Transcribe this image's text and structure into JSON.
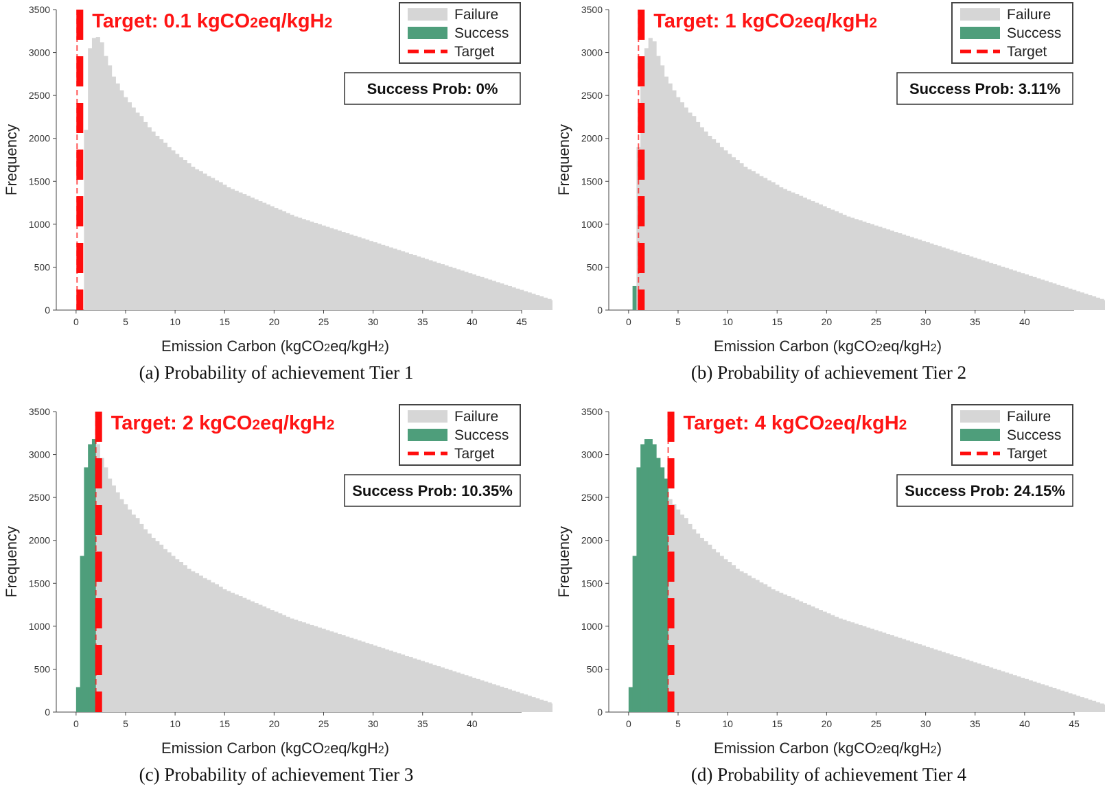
{
  "colors": {
    "failure": "#d6d6d6",
    "success": "#4e9e7b",
    "target": "#ff0d0d"
  },
  "chart_data": [
    {
      "type": "bar",
      "caption": "(a) Probability of achievement Tier 1",
      "xlabel": "Emission Carbon (kgCO2eq/kgH2)",
      "ylabel": "Frequency",
      "xlim": [
        -2,
        45
      ],
      "ylim": [
        0,
        3500
      ],
      "xticks": [
        0,
        5,
        10,
        15,
        20,
        25,
        30,
        35,
        40,
        45
      ],
      "yticks": [
        0,
        500,
        1000,
        1500,
        2000,
        2500,
        3000,
        3500
      ],
      "target": 0.1,
      "target_label": "Target: 0.1 kgCO2eq/kgH2",
      "success_prob": "Success Prob: 0%",
      "legend": [
        "Failure",
        "Success",
        "Target"
      ],
      "bins": {
        "start": 0,
        "width": 0.4,
        "values": [
          0,
          0,
          2100,
          3050,
          3170,
          3180,
          3120,
          2960,
          2850,
          2720,
          2640,
          2560,
          2480,
          2420,
          2360,
          2300,
          2260,
          2190,
          2130,
          2080,
          2030,
          1990,
          1950,
          1900,
          1860,
          1820,
          1780,
          1750,
          1710,
          1670,
          1640,
          1620,
          1590,
          1560,
          1540,
          1510,
          1490,
          1460,
          1430,
          1410,
          1390,
          1370,
          1350,
          1330,
          1310,
          1290,
          1270,
          1250,
          1230,
          1210,
          1190,
          1170,
          1150,
          1130,
          1110,
          1090,
          1075,
          1060,
          1045,
          1030,
          1015,
          1000,
          985,
          970,
          955,
          940,
          925,
          910,
          895,
          880,
          865,
          850,
          835,
          820,
          805,
          790,
          775,
          760,
          745,
          730,
          715,
          700,
          685,
          670,
          655,
          640,
          625,
          610,
          595,
          580,
          565,
          550,
          535,
          520,
          505,
          490,
          475,
          460,
          445,
          430,
          415,
          400,
          385,
          370,
          355,
          340,
          325,
          310,
          295,
          280,
          265,
          250,
          235,
          220,
          205,
          190,
          175,
          160,
          145,
          130,
          115,
          100,
          88,
          76,
          65,
          55,
          46,
          38,
          31,
          25,
          20,
          15,
          11,
          8,
          6,
          4,
          3,
          2,
          1,
          1,
          0,
          0,
          0,
          0,
          0,
          0,
          0,
          0,
          0,
          0,
          0,
          0,
          0,
          0,
          0,
          0,
          0,
          0,
          0,
          0,
          0,
          0,
          0,
          0,
          0,
          0
        ]
      }
    },
    {
      "type": "bar",
      "caption": "(b) Probability of achievement Tier 2",
      "xlabel": "Emission Carbon (kgCO2eq/kgH2)",
      "ylabel": "Frequency",
      "xlim": [
        -2,
        45
      ],
      "ylim": [
        0,
        3500
      ],
      "xticks": [
        0,
        5,
        10,
        15,
        20,
        25,
        30,
        35,
        40
      ],
      "yticks": [
        0,
        500,
        1000,
        1500,
        2000,
        2500,
        3000,
        3500
      ],
      "target": 1,
      "target_label": "Target: 1 kgCO2eq/kgH2",
      "success_prob": "Success Prob: 3.11%",
      "legend": [
        "Failure",
        "Success",
        "Target"
      ],
      "bins": {
        "start": 0,
        "width": 0.4,
        "values": [
          0,
          280,
          1900,
          2600,
          3050,
          3170,
          3130,
          2960,
          2850,
          2720,
          2640,
          2560,
          2480,
          2420,
          2360,
          2300,
          2260,
          2190,
          2130,
          2080,
          2030,
          1990,
          1950,
          1900,
          1860,
          1820,
          1780,
          1750,
          1710,
          1670,
          1640,
          1620,
          1590,
          1560,
          1540,
          1510,
          1490,
          1460,
          1430,
          1410,
          1390,
          1370,
          1350,
          1330,
          1310,
          1290,
          1270,
          1250,
          1230,
          1210,
          1190,
          1170,
          1150,
          1130,
          1110,
          1090,
          1075,
          1060,
          1045,
          1030,
          1015,
          1000,
          985,
          970,
          955,
          940,
          925,
          910,
          895,
          880,
          865,
          850,
          835,
          820,
          805,
          790,
          775,
          760,
          745,
          730,
          715,
          700,
          685,
          670,
          655,
          640,
          625,
          610,
          595,
          580,
          565,
          550,
          535,
          520,
          505,
          490,
          475,
          460,
          445,
          430,
          415,
          400,
          385,
          370,
          355,
          340,
          325,
          310,
          295,
          280,
          265,
          250,
          235,
          220,
          205,
          190,
          175,
          160,
          145,
          130,
          115,
          100,
          88,
          76,
          65,
          55,
          46,
          38,
          31,
          25,
          20,
          15,
          11,
          8,
          6,
          4,
          3,
          2,
          1,
          1,
          0,
          0,
          0,
          0,
          0,
          0,
          0,
          0,
          0,
          0,
          0,
          0,
          0,
          0,
          0,
          0,
          0,
          0,
          0,
          0,
          0,
          0,
          0,
          0,
          0,
          0
        ]
      }
    },
    {
      "type": "bar",
      "caption": "(c) Probability of achievement Tier 3",
      "xlabel": "Emission Carbon (kgCO2eq/kgH2)",
      "ylabel": "Frequency",
      "xlim": [
        -2,
        45
      ],
      "ylim": [
        0,
        3500
      ],
      "xticks": [
        0,
        5,
        10,
        15,
        20,
        25,
        30,
        35,
        40
      ],
      "yticks": [
        0,
        500,
        1000,
        1500,
        2000,
        2500,
        3000,
        3500
      ],
      "target": 2,
      "target_label": "Target: 2 kgCO2eq/kgH2",
      "success_prob": "Success Prob: 10.35%",
      "legend": [
        "Failure",
        "Success",
        "Target"
      ],
      "bins": {
        "start": 0,
        "width": 0.4,
        "values": [
          290,
          1820,
          2850,
          3120,
          3180,
          3120,
          2960,
          2850,
          2720,
          2640,
          2560,
          2480,
          2420,
          2360,
          2300,
          2260,
          2190,
          2130,
          2080,
          2030,
          1990,
          1950,
          1900,
          1860,
          1820,
          1780,
          1750,
          1710,
          1670,
          1640,
          1620,
          1590,
          1560,
          1540,
          1510,
          1490,
          1460,
          1430,
          1410,
          1390,
          1370,
          1350,
          1330,
          1310,
          1290,
          1270,
          1250,
          1230,
          1210,
          1190,
          1170,
          1150,
          1130,
          1110,
          1090,
          1075,
          1060,
          1045,
          1030,
          1015,
          1000,
          985,
          970,
          955,
          940,
          925,
          910,
          895,
          880,
          865,
          850,
          835,
          820,
          805,
          790,
          775,
          760,
          745,
          730,
          715,
          700,
          685,
          670,
          655,
          640,
          625,
          610,
          595,
          580,
          565,
          550,
          535,
          520,
          505,
          490,
          475,
          460,
          445,
          430,
          415,
          400,
          385,
          370,
          355,
          340,
          325,
          310,
          295,
          280,
          265,
          250,
          235,
          220,
          205,
          190,
          175,
          160,
          145,
          130,
          115,
          100,
          88,
          76,
          65,
          55,
          46,
          38,
          31,
          25,
          20,
          15,
          11,
          8,
          6,
          4,
          3,
          2,
          1,
          1,
          0,
          0,
          0,
          0,
          0,
          0,
          0,
          0,
          0,
          0,
          0,
          0,
          0,
          0,
          0,
          0,
          0,
          0,
          0,
          0,
          0,
          0,
          0,
          0,
          0
        ]
      }
    },
    {
      "type": "bar",
      "caption": "(d) Probability of achievement Tier 4",
      "xlabel": "Emission Carbon (kgCO2eq/kgH2)",
      "ylabel": "Frequency",
      "xlim": [
        -2,
        45
      ],
      "ylim": [
        0,
        3500
      ],
      "xticks": [
        0,
        5,
        10,
        15,
        20,
        25,
        30,
        35,
        40,
        45
      ],
      "yticks": [
        0,
        500,
        1000,
        1500,
        2000,
        2500,
        3000,
        3500
      ],
      "target": 4,
      "target_label": "Target: 4 kgCO2eq/kgH2",
      "success_prob": "Success Prob: 24.15%",
      "legend": [
        "Failure",
        "Success",
        "Target"
      ],
      "bins": {
        "start": 0,
        "width": 0.4,
        "values": [
          290,
          1820,
          2850,
          3120,
          3180,
          3180,
          3120,
          2960,
          2850,
          2720,
          2480,
          2420,
          2360,
          2300,
          2260,
          2190,
          2130,
          2080,
          2030,
          1990,
          1950,
          1900,
          1860,
          1820,
          1780,
          1750,
          1710,
          1670,
          1640,
          1620,
          1590,
          1560,
          1540,
          1510,
          1490,
          1460,
          1430,
          1410,
          1390,
          1370,
          1350,
          1330,
          1310,
          1290,
          1270,
          1250,
          1230,
          1210,
          1190,
          1170,
          1150,
          1130,
          1110,
          1090,
          1075,
          1060,
          1045,
          1030,
          1015,
          1000,
          985,
          970,
          955,
          940,
          925,
          910,
          895,
          880,
          865,
          850,
          835,
          820,
          805,
          790,
          775,
          760,
          745,
          730,
          715,
          700,
          685,
          670,
          655,
          640,
          625,
          610,
          595,
          580,
          565,
          550,
          535,
          520,
          505,
          490,
          475,
          460,
          445,
          430,
          415,
          400,
          385,
          370,
          355,
          340,
          325,
          310,
          295,
          280,
          265,
          250,
          235,
          220,
          205,
          190,
          175,
          160,
          145,
          130,
          115,
          100,
          88,
          76,
          65,
          55,
          46,
          38,
          31,
          25,
          20,
          15,
          11,
          8,
          6,
          4,
          3,
          2,
          1,
          1,
          0,
          0,
          0,
          0,
          0,
          0,
          0,
          0,
          0,
          0,
          0,
          0,
          0,
          0,
          0,
          0,
          0,
          0,
          0,
          0,
          0,
          0,
          0
        ]
      }
    }
  ]
}
